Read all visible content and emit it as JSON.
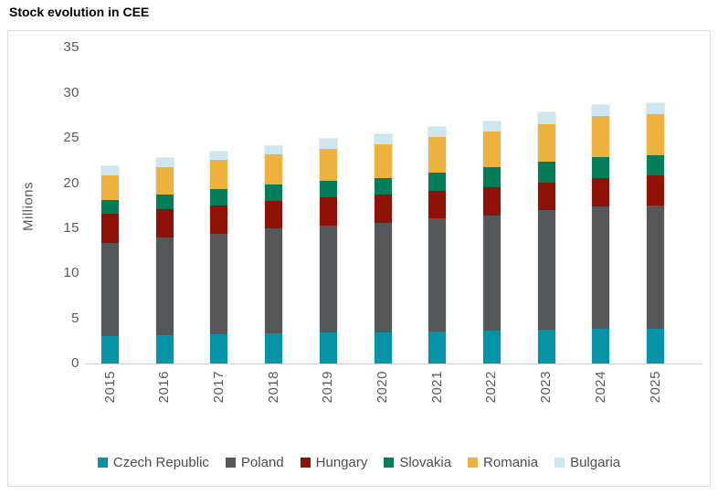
{
  "title": "Stock evolution in CEE",
  "chart_data": {
    "type": "bar",
    "stacked": true,
    "title": "Stock evolution in CEE",
    "xlabel": "",
    "ylabel": "Millions",
    "ylim": [
      0,
      35
    ],
    "ytick_step": 5,
    "yticks": [
      0,
      5,
      10,
      15,
      20,
      25,
      30,
      35
    ],
    "grid": false,
    "legend_position": "bottom",
    "categories": [
      "2015",
      "2016",
      "2017",
      "2018",
      "2019",
      "2020",
      "2021",
      "2022",
      "2023",
      "2024",
      "2025"
    ],
    "series": [
      {
        "name": "Czech Republic",
        "color": "#0793A7",
        "values": [
          3.0,
          3.1,
          3.2,
          3.3,
          3.4,
          3.4,
          3.5,
          3.6,
          3.7,
          3.8,
          3.8
        ]
      },
      {
        "name": "Poland",
        "color": "#555759",
        "values": [
          10.4,
          10.9,
          11.2,
          11.7,
          11.9,
          12.2,
          12.6,
          12.8,
          13.3,
          13.6,
          13.7
        ]
      },
      {
        "name": "Hungary",
        "color": "#8E1206",
        "values": [
          3.2,
          3.1,
          3.1,
          3.0,
          3.1,
          3.1,
          3.0,
          3.1,
          3.1,
          3.2,
          3.4
        ]
      },
      {
        "name": "Slovakia",
        "color": "#047E58",
        "values": [
          1.5,
          1.6,
          1.8,
          1.8,
          1.9,
          1.9,
          2.1,
          2.3,
          2.3,
          2.3,
          2.2
        ]
      },
      {
        "name": "Romania",
        "color": "#F0B23E",
        "values": [
          2.8,
          3.1,
          3.3,
          3.4,
          3.5,
          3.7,
          3.9,
          3.9,
          4.1,
          4.5,
          4.5
        ]
      },
      {
        "name": "Bulgaria",
        "color": "#CDE6EF",
        "values": [
          1.0,
          1.0,
          0.9,
          0.9,
          1.1,
          1.1,
          1.1,
          1.1,
          1.3,
          1.3,
          1.3
        ]
      }
    ],
    "totals": [
      21.9,
      22.8,
      23.5,
      24.1,
      24.9,
      25.4,
      26.2,
      26.8,
      27.8,
      28.7,
      28.9
    ]
  }
}
